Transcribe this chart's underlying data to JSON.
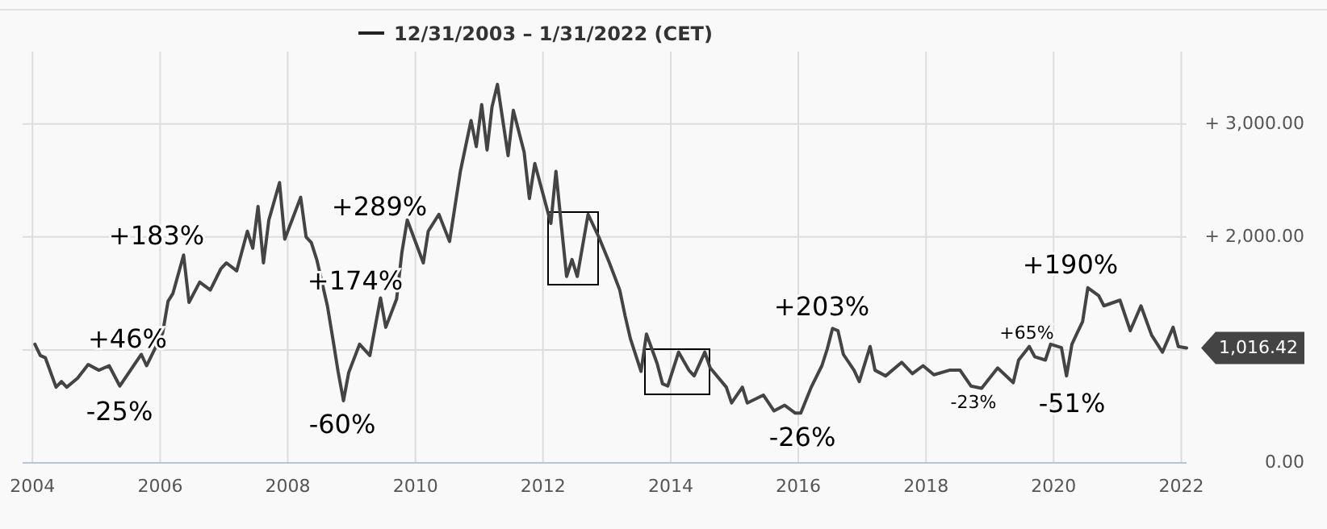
{
  "chart_data": {
    "type": "line",
    "subtitle": "12/31/2003 – 1/31/2022 (CET)",
    "series": [
      {
        "color": "#444444",
        "x": [
          "2004-01-15",
          "2004-02-15",
          "2004-03-15",
          "2004-05-15",
          "2004-06-15",
          "2004-07-15",
          "2004-09-15",
          "2004-11-15",
          "2005-01-15",
          "2005-03-15",
          "2005-05-15",
          "2005-07-15",
          "2005-09-15",
          "2005-10-15",
          "2006-01-15",
          "2006-02-15",
          "2006-03-15",
          "2006-05-15",
          "2006-06-15",
          "2006-08-15",
          "2006-10-15",
          "2006-12-15",
          "2007-01-15",
          "2007-03-15",
          "2007-05-15",
          "2007-06-15",
          "2007-07-15",
          "2007-08-15",
          "2007-09-15",
          "2007-11-15",
          "2007-12-15",
          "2008-03-15",
          "2008-04-15",
          "2008-05-15",
          "2008-06-15",
          "2008-08-15",
          "2008-09-15",
          "2008-10-15",
          "2008-11-15",
          "2008-12-15",
          "2009-02-15",
          "2009-04-15",
          "2009-06-15",
          "2009-07-15",
          "2009-09-15",
          "2009-10-15",
          "2009-11-15",
          "2010-02-15",
          "2010-03-15",
          "2010-05-15",
          "2010-07-15",
          "2010-09-15",
          "2010-11-15",
          "2010-12-15",
          "2011-01-15",
          "2011-02-15",
          "2011-03-15",
          "2011-04-15",
          "2011-06-15",
          "2011-07-15",
          "2011-09-15",
          "2011-10-15",
          "2011-11-15",
          "2012-02-15",
          "2012-03-15",
          "2012-04-15",
          "2012-05-15",
          "2012-06-15",
          "2012-07-15",
          "2012-09-15",
          "2012-11-15",
          "2013-01-15",
          "2013-03-15",
          "2013-04-15",
          "2013-05-15",
          "2013-07-15",
          "2013-08-15",
          "2013-10-15",
          "2013-11-15",
          "2013-12-15",
          "2014-02-15",
          "2014-04-15",
          "2014-05-15",
          "2014-07-15",
          "2014-08-15",
          "2014-11-15",
          "2014-12-15",
          "2015-02-15",
          "2015-03-15",
          "2015-06-15",
          "2015-08-15",
          "2015-10-15",
          "2015-12-15",
          "2016-01-15",
          "2016-03-15",
          "2016-05-15",
          "2016-06-15",
          "2016-07-15",
          "2016-08-15",
          "2016-09-15",
          "2016-11-15",
          "2016-12-15",
          "2017-02-15",
          "2017-03-15",
          "2017-05-15",
          "2017-08-15",
          "2017-10-15",
          "2017-12-15",
          "2018-02-15",
          "2018-05-15",
          "2018-07-15",
          "2018-09-15",
          "2018-11-15",
          "2019-02-15",
          "2019-05-15",
          "2019-06-15",
          "2019-08-15",
          "2019-09-15",
          "2019-11-15",
          "2019-12-15",
          "2020-02-15",
          "2020-03-15",
          "2020-04-15",
          "2020-05-15",
          "2020-06-15",
          "2020-07-15",
          "2020-09-15",
          "2020-10-15",
          "2021-01-15",
          "2021-03-15",
          "2021-05-15",
          "2021-07-15",
          "2021-09-15",
          "2021-11-15",
          "2021-12-15",
          "2022-01-31"
        ],
        "values": [
          1050,
          950,
          930,
          670,
          720,
          670,
          750,
          870,
          820,
          860,
          680,
          820,
          960,
          860,
          1150,
          1430,
          1500,
          1840,
          1420,
          1600,
          1530,
          1720,
          1770,
          1700,
          2050,
          1900,
          2270,
          1770,
          2150,
          2480,
          1980,
          2350,
          2000,
          1950,
          1800,
          1390,
          1100,
          810,
          550,
          800,
          1050,
          950,
          1460,
          1200,
          1450,
          1860,
          2150,
          1770,
          2050,
          2200,
          1960,
          2580,
          3030,
          2800,
          3170,
          2770,
          3150,
          3350,
          2720,
          3120,
          2750,
          2340,
          2650,
          2120,
          2580,
          2100,
          1650,
          1800,
          1650,
          2200,
          2000,
          1770,
          1530,
          1300,
          1100,
          810,
          1140,
          880,
          700,
          680,
          980,
          820,
          770,
          980,
          840,
          670,
          530,
          670,
          530,
          600,
          460,
          510,
          440,
          440,
          670,
          860,
          1010,
          1190,
          1170,
          960,
          820,
          720,
          1030,
          820,
          770,
          890,
          790,
          860,
          780,
          820,
          820,
          680,
          660,
          840,
          710,
          910,
          1030,
          940,
          910,
          1050,
          1020,
          770,
          1050,
          1150,
          1250,
          1550,
          1480,
          1390,
          1440,
          1170,
          1390,
          1130,
          980,
          1200,
          1030,
          1016.42
        ]
      }
    ],
    "xlim": [
      "2003-12-31",
      "2022-01-31"
    ],
    "xticks": [
      "2004",
      "2006",
      "2008",
      "2010",
      "2012",
      "2014",
      "2016",
      "2018",
      "2020",
      "2022"
    ],
    "ylim": [
      0,
      3640
    ],
    "yticks": [
      {
        "value": 0,
        "label": "0.00"
      },
      {
        "value": 1000,
        "label": null
      },
      {
        "value": 2000,
        "label": "+ 2,000.00"
      },
      {
        "value": 3000,
        "label": "+ 3,000.00"
      }
    ],
    "grid": true,
    "marker": "none",
    "line_style": "solid",
    "annotations": [
      "+46%",
      "-25%",
      "+183%",
      "-60%",
      "+174%",
      "+289%",
      "+203%",
      "-26%",
      "-23%",
      "+65%",
      "+190%",
      "-51%",
      {
        "text": "1,016.42",
        "x": "2022-01-31",
        "y": 1016.42
      }
    ]
  }
}
